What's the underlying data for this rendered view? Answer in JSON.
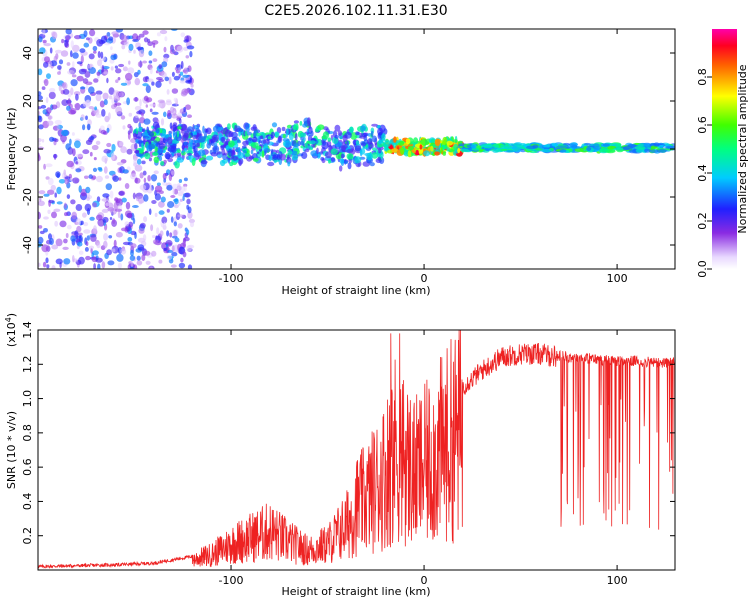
{
  "title": "C2E5.2026.102.11.31.E30",
  "colors": {
    "snr_line": "#ee2222",
    "axis": "#000000",
    "background": "#ffffff"
  },
  "chart_data": [
    {
      "type": "heatmap",
      "title": "C2E5.2026.102.11.31.E30",
      "xlabel": "Height of straight line (km)",
      "ylabel": "Frequency (Hz)",
      "xlim": [
        -200,
        130
      ],
      "ylim": [
        -50,
        50
      ],
      "xticks": [
        {
          "value": -100,
          "label": "-100"
        },
        {
          "value": 0,
          "label": "0"
        },
        {
          "value": 100,
          "label": "100"
        }
      ],
      "yticks": [
        {
          "value": 40,
          "label": "40"
        },
        {
          "value": 20,
          "label": "20"
        },
        {
          "value": 0,
          "label": "0"
        },
        {
          "value": -20,
          "label": "-20"
        },
        {
          "value": -40,
          "label": "-40"
        }
      ],
      "description_regions": [
        {
          "x_range": [
            -200,
            -120
          ],
          "freq_range": [
            -50,
            50
          ],
          "amplitude": [
            0.05,
            0.35
          ],
          "pattern": "scattered noise"
        },
        {
          "x_range": [
            -150,
            -20
          ],
          "freq_range": [
            -8,
            10
          ],
          "amplitude": [
            0.2,
            0.55
          ],
          "pattern": "broad signal band"
        },
        {
          "x_range": [
            -20,
            20
          ],
          "freq_range": [
            -2,
            4
          ],
          "amplitude": [
            0.4,
            0.95
          ],
          "pattern": "concentrated signal"
        },
        {
          "x_range": [
            20,
            130
          ],
          "freq_range": [
            -1,
            2
          ],
          "amplitude": [
            0.3,
            0.6
          ],
          "pattern": "narrow steady line"
        }
      ],
      "colorbar": {
        "label": "Normalized spectral amplitude",
        "range": [
          0,
          1
        ],
        "ticks": [
          {
            "value": 0.0,
            "label": "0.0"
          },
          {
            "value": 0.2,
            "label": "0.2"
          },
          {
            "value": 0.4,
            "label": "0.4"
          },
          {
            "value": 0.6,
            "label": "0.6"
          },
          {
            "value": 0.8,
            "label": "0.8"
          }
        ]
      }
    },
    {
      "type": "line",
      "xlabel": "Height of straight line (km)",
      "ylabel": "SNR (10 * v/v)",
      "y_multiplier": "(x10",
      "y_multiplier_exp": "4",
      "y_multiplier_close": ")",
      "xlim": [
        -200,
        130
      ],
      "ylim": [
        0,
        1.4
      ],
      "xticks": [
        {
          "value": -100,
          "label": "-100"
        },
        {
          "value": 0,
          "label": "0"
        },
        {
          "value": 100,
          "label": "100"
        }
      ],
      "yticks": [
        {
          "value": 0.2,
          "label": "0.2"
        },
        {
          "value": 0.4,
          "label": "0.4"
        },
        {
          "value": 0.6,
          "label": "0.6"
        },
        {
          "value": 0.8,
          "label": "0.8"
        },
        {
          "value": 1.0,
          "label": "1.0"
        },
        {
          "value": 1.2,
          "label": "1.2"
        },
        {
          "value": 1.4,
          "label": "1.4"
        }
      ],
      "series": [
        {
          "name": "SNR",
          "x": [
            -200,
            -180,
            -160,
            -140,
            -130,
            -120,
            -110,
            -100,
            -90,
            -80,
            -70,
            -60,
            -50,
            -40,
            -35,
            -30,
            -25,
            -20,
            -15,
            -10,
            -5,
            0,
            10,
            20,
            30,
            40,
            50,
            60,
            70,
            80,
            90,
            100,
            110,
            120,
            130
          ],
          "values": [
            0.02,
            0.025,
            0.03,
            0.04,
            0.06,
            0.08,
            0.12,
            0.2,
            0.25,
            0.3,
            0.22,
            0.15,
            0.2,
            0.35,
            0.5,
            0.55,
            0.65,
            0.75,
            0.95,
            0.85,
            0.75,
            0.8,
            0.95,
            1.1,
            1.2,
            1.28,
            1.3,
            1.3,
            1.28,
            1.27,
            1.26,
            1.25,
            1.25,
            1.24,
            1.24
          ]
        }
      ]
    }
  ]
}
